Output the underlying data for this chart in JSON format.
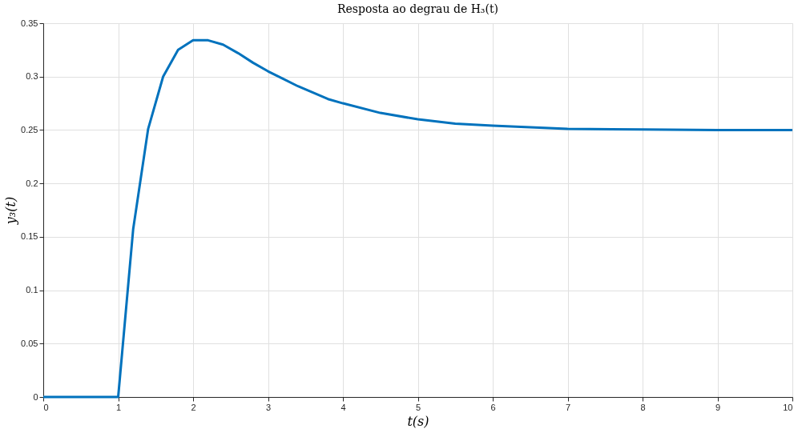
{
  "chart_data": {
    "type": "line",
    "title": "Resposta ao degrau de H₃(t)",
    "xlabel": "t(s)",
    "ylabel": "y₃(t)",
    "x": [
      0,
      0.2,
      0.4,
      0.6,
      0.8,
      1.0,
      1.2,
      1.4,
      1.6,
      1.8,
      2.0,
      2.2,
      2.4,
      2.6,
      2.8,
      3.0,
      3.2,
      3.4,
      3.6,
      3.8,
      4.0,
      4.5,
      5.0,
      5.5,
      6.0,
      7.0,
      8.0,
      9.0,
      10.0
    ],
    "series": [
      {
        "color": "#0072bd",
        "values": [
          0,
          0,
          0,
          0,
          0,
          0,
          0.157,
          0.251,
          0.3,
          0.325,
          0.334,
          0.334,
          0.33,
          0.322,
          0.313,
          0.305,
          0.298,
          0.291,
          0.285,
          0.279,
          0.275,
          0.266,
          0.26,
          0.256,
          0.254,
          0.251,
          0.2505,
          0.25,
          0.25
        ]
      }
    ],
    "xlim": [
      0,
      10
    ],
    "ylim": [
      0,
      0.35
    ],
    "xticks": [
      0,
      1,
      2,
      3,
      4,
      5,
      6,
      7,
      8,
      9,
      10
    ],
    "yticks": [
      0,
      0.05,
      0.1,
      0.15,
      0.2,
      0.25,
      0.3,
      0.35
    ],
    "grid": true,
    "marker": "none",
    "line_style": "solid"
  }
}
